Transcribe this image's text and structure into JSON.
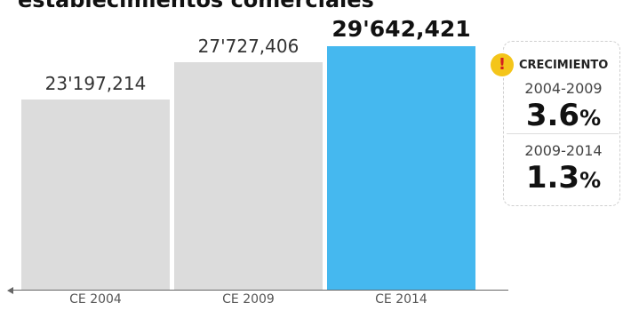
{
  "header": {
    "title_fragment": "establecimientos comerciales"
  },
  "chart_data": {
    "type": "bar",
    "categories": [
      "CE 2004",
      "CE 2009",
      "CE 2014"
    ],
    "values": [
      23197214,
      27727406,
      29642421
    ],
    "value_labels": [
      "23'197,214",
      "27'727,406",
      "29'642,421"
    ],
    "highlight_index": 2,
    "ylim": [
      0,
      32500000
    ],
    "grid": false,
    "legend": "none",
    "colors": {
      "bar": "#dcdcdc",
      "highlight": "#45b8ef",
      "axis": "#666666"
    }
  },
  "growth_box": {
    "icon": "alert-icon",
    "icon_glyph": "!",
    "heading": "CRECIMIENTO",
    "items": [
      {
        "period": "2004-2009",
        "value": "3.6",
        "unit": "%"
      },
      {
        "period": "2009-2014",
        "value": "1.3",
        "unit": "%"
      }
    ]
  }
}
